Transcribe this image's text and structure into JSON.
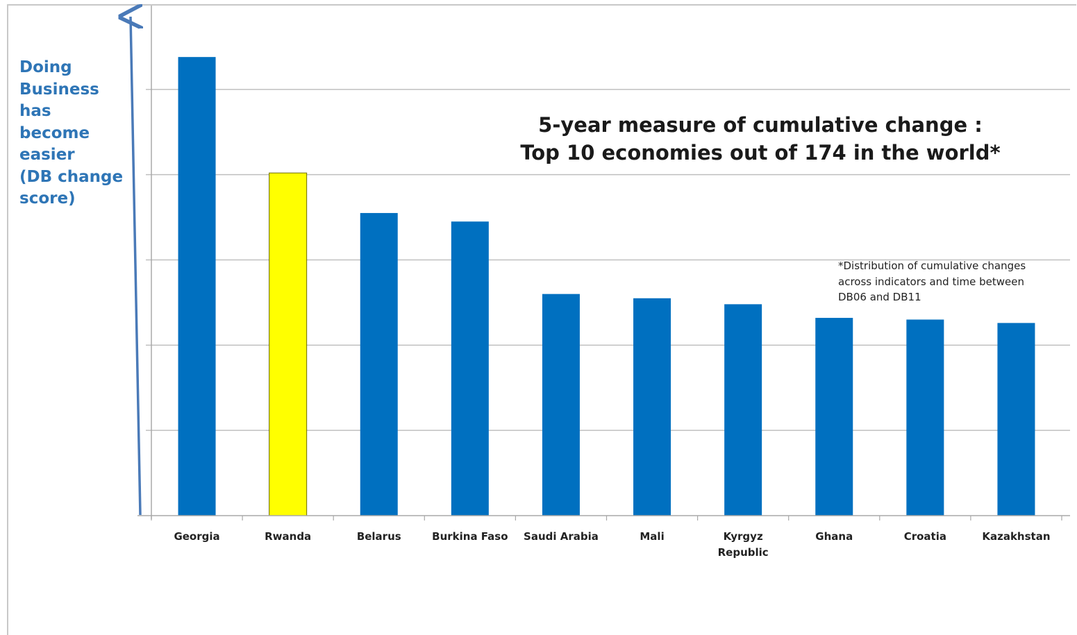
{
  "chart_data": {
    "type": "bar",
    "title": [
      "5-year measure of cumulative change :",
      "Top 10 economies out of 174 in the world*"
    ],
    "ylabel": "Doing\nBusiness\nhas\nbecome\neasier\n(DB change\nscore)",
    "note": "*Distribution of cumulative changes across indicators and time between DB06 and DB11",
    "categories": [
      "Georgia",
      "Rwanda",
      "Belarus",
      "Burkina Faso",
      "Saudi Arabia",
      "Mali",
      "Kyrgyz Republic",
      "Ghana",
      "Croatia",
      "Kazakhstan"
    ],
    "category_lines": [
      [
        "Georgia"
      ],
      [
        "Rwanda"
      ],
      [
        "Belarus"
      ],
      [
        "Burkina Faso"
      ],
      [
        "Saudi Arabia"
      ],
      [
        "Mali"
      ],
      [
        "Kyrgyz",
        "Republic"
      ],
      [
        "Ghana"
      ],
      [
        "Croatia"
      ],
      [
        "Kazakhstan"
      ]
    ],
    "values": [
      5.38,
      4.02,
      3.55,
      3.45,
      2.6,
      2.55,
      2.48,
      2.32,
      2.3,
      2.26
    ],
    "ylim": [
      0,
      6
    ],
    "gridlines": [
      1,
      2,
      3,
      4,
      5
    ],
    "grid": true,
    "legend": "none",
    "colors": {
      "bar": "#0070c0",
      "highlight": "#ffff00",
      "highlight_index": 1,
      "axis_arrow": "#4a7ab8",
      "grid": "#bfbfbf"
    }
  }
}
